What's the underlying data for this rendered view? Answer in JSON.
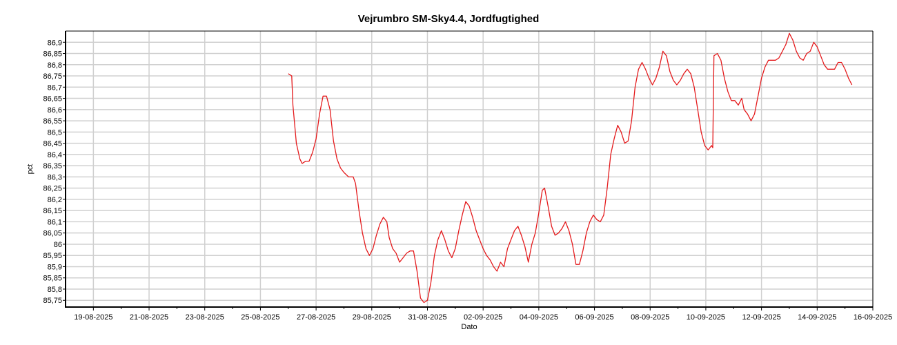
{
  "chart_data": {
    "type": "line",
    "title": "Vejrumbro SM-Sky4.4, Jordfugtighed",
    "xlabel": "Dato",
    "ylabel": "pct",
    "grid": true,
    "legend": "none",
    "xlim": [
      "2025-08-18",
      "2025-09-16"
    ],
    "ylim": [
      85.72,
      86.95
    ],
    "x_ticks": [
      "19-08-2025",
      "21-08-2025",
      "23-08-2025",
      "25-08-2025",
      "27-08-2025",
      "29-08-2025",
      "31-08-2025",
      "02-09-2025",
      "04-09-2025",
      "06-09-2025",
      "08-09-2025",
      "10-09-2025",
      "12-09-2025",
      "14-09-2025",
      "16-09-2025"
    ],
    "y_ticks": [
      "85,75",
      "85,8",
      "85,85",
      "85,9",
      "85,95",
      "86",
      "86,05",
      "86,1",
      "86,15",
      "86,2",
      "86,25",
      "86,3",
      "86,35",
      "86,4",
      "86,45",
      "86,5",
      "86,55",
      "86,6",
      "86,65",
      "86,7",
      "86,75",
      "86,8",
      "86,85",
      "86,9"
    ],
    "series": [
      {
        "color": "#e41a1c",
        "points": [
          [
            "2025-08-26 00:00",
            86.76
          ],
          [
            "2025-08-26 03:00",
            86.75
          ],
          [
            "2025-08-26 04:00",
            86.62
          ],
          [
            "2025-08-26 07:00",
            86.45
          ],
          [
            "2025-08-26 10:00",
            86.38
          ],
          [
            "2025-08-26 12:00",
            86.36
          ],
          [
            "2025-08-26 15:00",
            86.37
          ],
          [
            "2025-08-26 18:00",
            86.37
          ],
          [
            "2025-08-26 21:00",
            86.41
          ],
          [
            "2025-08-27 00:00",
            86.47
          ],
          [
            "2025-08-27 03:00",
            86.58
          ],
          [
            "2025-08-27 06:00",
            86.66
          ],
          [
            "2025-08-27 09:00",
            86.66
          ],
          [
            "2025-08-27 12:00",
            86.6
          ],
          [
            "2025-08-27 15:00",
            86.46
          ],
          [
            "2025-08-27 18:00",
            86.38
          ],
          [
            "2025-08-27 21:00",
            86.34
          ],
          [
            "2025-08-28 00:00",
            86.32
          ],
          [
            "2025-08-28 04:00",
            86.3
          ],
          [
            "2025-08-28 08:00",
            86.3
          ],
          [
            "2025-08-28 10:00",
            86.27
          ],
          [
            "2025-08-28 13:00",
            86.15
          ],
          [
            "2025-08-28 16:00",
            86.05
          ],
          [
            "2025-08-28 19:00",
            85.98
          ],
          [
            "2025-08-28 22:00",
            85.95
          ],
          [
            "2025-08-29 01:00",
            85.98
          ],
          [
            "2025-08-29 04:00",
            86.04
          ],
          [
            "2025-08-29 07:00",
            86.09
          ],
          [
            "2025-08-29 10:00",
            86.12
          ],
          [
            "2025-08-29 13:00",
            86.1
          ],
          [
            "2025-08-29 15:00",
            86.03
          ],
          [
            "2025-08-29 18:00",
            85.98
          ],
          [
            "2025-08-29 21:00",
            85.96
          ],
          [
            "2025-08-30 00:00",
            85.92
          ],
          [
            "2025-08-30 03:00",
            85.94
          ],
          [
            "2025-08-30 06:00",
            85.96
          ],
          [
            "2025-08-30 09:00",
            85.97
          ],
          [
            "2025-08-30 12:00",
            85.97
          ],
          [
            "2025-08-30 15:00",
            85.88
          ],
          [
            "2025-08-30 18:00",
            85.76
          ],
          [
            "2025-08-30 21:00",
            85.74
          ],
          [
            "2025-08-31 00:00",
            85.75
          ],
          [
            "2025-08-31 03:00",
            85.83
          ],
          [
            "2025-08-31 06:00",
            85.95
          ],
          [
            "2025-08-31 09:00",
            86.02
          ],
          [
            "2025-08-31 12:00",
            86.06
          ],
          [
            "2025-08-31 15:00",
            86.02
          ],
          [
            "2025-08-31 18:00",
            85.97
          ],
          [
            "2025-08-31 21:00",
            85.94
          ],
          [
            "2025-09-01 00:00",
            85.98
          ],
          [
            "2025-09-01 03:00",
            86.06
          ],
          [
            "2025-09-01 06:00",
            86.13
          ],
          [
            "2025-09-01 09:00",
            86.19
          ],
          [
            "2025-09-01 12:00",
            86.17
          ],
          [
            "2025-09-01 15:00",
            86.12
          ],
          [
            "2025-09-01 18:00",
            86.06
          ],
          [
            "2025-09-01 21:00",
            86.02
          ],
          [
            "2025-09-02 00:00",
            85.98
          ],
          [
            "2025-09-02 03:00",
            85.95
          ],
          [
            "2025-09-02 06:00",
            85.93
          ],
          [
            "2025-09-02 09:00",
            85.9
          ],
          [
            "2025-09-02 12:00",
            85.88
          ],
          [
            "2025-09-02 15:00",
            85.92
          ],
          [
            "2025-09-02 18:00",
            85.9
          ],
          [
            "2025-09-02 21:00",
            85.98
          ],
          [
            "2025-09-03 00:00",
            86.02
          ],
          [
            "2025-09-03 03:00",
            86.06
          ],
          [
            "2025-09-03 06:00",
            86.08
          ],
          [
            "2025-09-03 09:00",
            86.04
          ],
          [
            "2025-09-03 12:00",
            85.99
          ],
          [
            "2025-09-03 15:00",
            85.92
          ],
          [
            "2025-09-03 18:00",
            86.0
          ],
          [
            "2025-09-03 21:00",
            86.05
          ],
          [
            "2025-09-04 00:00",
            86.14
          ],
          [
            "2025-09-04 03:00",
            86.24
          ],
          [
            "2025-09-04 05:00",
            86.25
          ],
          [
            "2025-09-04 08:00",
            86.17
          ],
          [
            "2025-09-04 11:00",
            86.08
          ],
          [
            "2025-09-04 14:00",
            86.04
          ],
          [
            "2025-09-04 17:00",
            86.05
          ],
          [
            "2025-09-04 20:00",
            86.07
          ],
          [
            "2025-09-04 23:00",
            86.1
          ],
          [
            "2025-09-05 02:00",
            86.06
          ],
          [
            "2025-09-05 05:00",
            86.0
          ],
          [
            "2025-09-05 08:00",
            85.91
          ],
          [
            "2025-09-05 11:00",
            85.91
          ],
          [
            "2025-09-05 14:00",
            85.97
          ],
          [
            "2025-09-05 17:00",
            86.05
          ],
          [
            "2025-09-05 20:00",
            86.1
          ],
          [
            "2025-09-05 23:00",
            86.13
          ],
          [
            "2025-09-06 02:00",
            86.11
          ],
          [
            "2025-09-06 05:00",
            86.1
          ],
          [
            "2025-09-06 08:00",
            86.13
          ],
          [
            "2025-09-06 11:00",
            86.25
          ],
          [
            "2025-09-06 14:00",
            86.4
          ],
          [
            "2025-09-06 17:00",
            86.47
          ],
          [
            "2025-09-06 20:00",
            86.53
          ],
          [
            "2025-09-06 23:00",
            86.5
          ],
          [
            "2025-09-07 02:00",
            86.45
          ],
          [
            "2025-09-07 05:00",
            86.46
          ],
          [
            "2025-09-07 08:00",
            86.55
          ],
          [
            "2025-09-07 11:00",
            86.7
          ],
          [
            "2025-09-07 14:00",
            86.78
          ],
          [
            "2025-09-07 17:00",
            86.81
          ],
          [
            "2025-09-07 20:00",
            86.78
          ],
          [
            "2025-09-07 23:00",
            86.74
          ],
          [
            "2025-09-08 02:00",
            86.71
          ],
          [
            "2025-09-08 05:00",
            86.74
          ],
          [
            "2025-09-08 08:00",
            86.79
          ],
          [
            "2025-09-08 11:00",
            86.86
          ],
          [
            "2025-09-08 14:00",
            86.84
          ],
          [
            "2025-09-08 17:00",
            86.77
          ],
          [
            "2025-09-08 20:00",
            86.73
          ],
          [
            "2025-09-08 23:00",
            86.71
          ],
          [
            "2025-09-09 02:00",
            86.73
          ],
          [
            "2025-09-09 05:00",
            86.76
          ],
          [
            "2025-09-09 08:00",
            86.78
          ],
          [
            "2025-09-09 11:00",
            86.76
          ],
          [
            "2025-09-09 14:00",
            86.7
          ],
          [
            "2025-09-09 17:00",
            86.6
          ],
          [
            "2025-09-09 20:00",
            86.5
          ],
          [
            "2025-09-09 23:00",
            86.44
          ],
          [
            "2025-09-10 02:00",
            86.42
          ],
          [
            "2025-09-10 05:00",
            86.44
          ],
          [
            "2025-09-10 06:00",
            86.43
          ],
          [
            "2025-09-10 07:00",
            86.84
          ],
          [
            "2025-09-10 10:00",
            86.85
          ],
          [
            "2025-09-10 13:00",
            86.82
          ],
          [
            "2025-09-10 16:00",
            86.74
          ],
          [
            "2025-09-10 19:00",
            86.68
          ],
          [
            "2025-09-10 22:00",
            86.64
          ],
          [
            "2025-09-11 01:00",
            86.64
          ],
          [
            "2025-09-11 04:00",
            86.62
          ],
          [
            "2025-09-11 07:00",
            86.65
          ],
          [
            "2025-09-11 09:00",
            86.6
          ],
          [
            "2025-09-11 12:00",
            86.58
          ],
          [
            "2025-09-11 15:00",
            86.55
          ],
          [
            "2025-09-11 18:00",
            86.58
          ],
          [
            "2025-09-11 21:00",
            86.66
          ],
          [
            "2025-09-12 00:00",
            86.74
          ],
          [
            "2025-09-12 03:00",
            86.79
          ],
          [
            "2025-09-12 06:00",
            86.82
          ],
          [
            "2025-09-12 09:00",
            86.82
          ],
          [
            "2025-09-12 12:00",
            86.82
          ],
          [
            "2025-09-12 15:00",
            86.83
          ],
          [
            "2025-09-12 18:00",
            86.86
          ],
          [
            "2025-09-12 21:00",
            86.89
          ],
          [
            "2025-09-13 00:00",
            86.94
          ],
          [
            "2025-09-13 03:00",
            86.91
          ],
          [
            "2025-09-13 06:00",
            86.86
          ],
          [
            "2025-09-13 09:00",
            86.83
          ],
          [
            "2025-09-13 12:00",
            86.82
          ],
          [
            "2025-09-13 15:00",
            86.85
          ],
          [
            "2025-09-13 18:00",
            86.86
          ],
          [
            "2025-09-13 21:00",
            86.9
          ],
          [
            "2025-09-14 00:00",
            86.88
          ],
          [
            "2025-09-14 03:00",
            86.84
          ],
          [
            "2025-09-14 06:00",
            86.8
          ],
          [
            "2025-09-14 09:00",
            86.78
          ],
          [
            "2025-09-14 12:00",
            86.78
          ],
          [
            "2025-09-14 15:00",
            86.78
          ],
          [
            "2025-09-14 18:00",
            86.81
          ],
          [
            "2025-09-14 21:00",
            86.81
          ],
          [
            "2025-09-15 00:00",
            86.78
          ],
          [
            "2025-09-15 03:00",
            86.74
          ],
          [
            "2025-09-15 06:00",
            86.71
          ]
        ]
      }
    ]
  }
}
